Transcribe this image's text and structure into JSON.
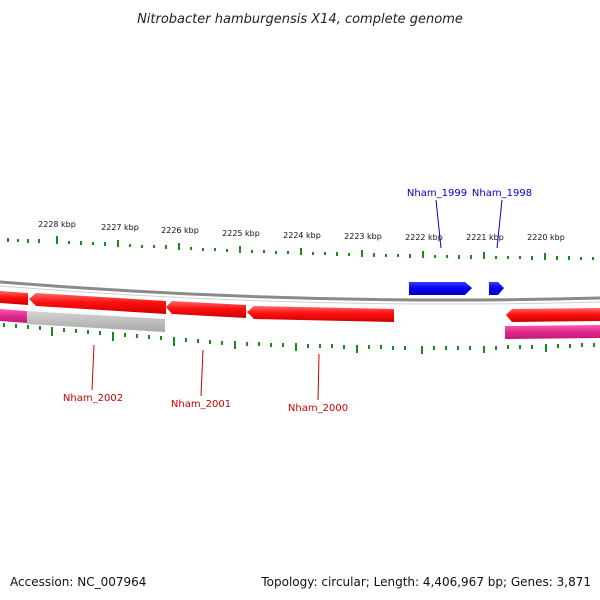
{
  "title": "Nitrobacter hamburgensis X14, complete genome",
  "footer": {
    "accession": "Accession: NC_007964",
    "summary": "Topology: circular; Length: 4,406,967 bp; Genes: 3,871"
  },
  "kbp_labels": [
    "2228 kbp",
    "2227 kbp",
    "2226 kbp",
    "2225 kbp",
    "2224 kbp",
    "2223 kbp",
    "2222 kbp",
    "2221 kbp",
    "2220 kbp"
  ],
  "forward_genes": [
    "Nham_1999",
    "Nham_1998"
  ],
  "reverse_genes": [
    "Nham_2002",
    "Nham_2001",
    "Nham_2000"
  ],
  "colors": {
    "forward_gene": "#0000ee",
    "reverse_gene": "#ee0000",
    "forward_label": "#0000cc",
    "reverse_label": "#cc0000",
    "magenta_feature": "#e0288c",
    "gray_feature": "#b8b8b8",
    "backbone": "#8a8a8a",
    "gc_ticks": "#1a8a1a",
    "tick_marks": "#1a8a1a"
  }
}
